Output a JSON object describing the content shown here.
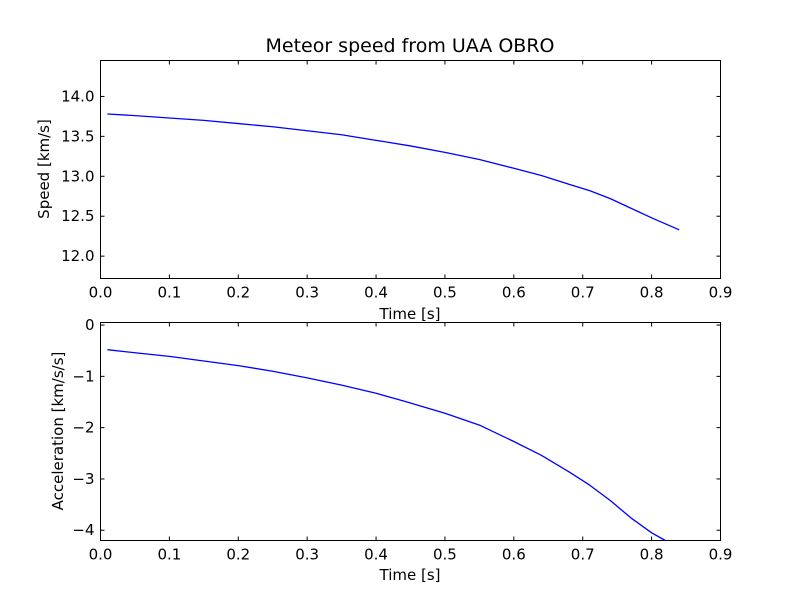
{
  "chart_data": [
    {
      "type": "line",
      "title": "Meteor speed from  UAA OBRO",
      "xlabel": "Time [s]",
      "ylabel": "Speed [km/s]",
      "xlim": [
        0.0,
        0.9
      ],
      "ylim": [
        11.72,
        14.45
      ],
      "xticks": [
        0.0,
        0.1,
        0.2,
        0.3,
        0.4,
        0.5,
        0.6,
        0.7,
        0.8,
        0.9
      ],
      "xtick_labels": [
        "0.0",
        "0.1",
        "0.2",
        "0.3",
        "0.4",
        "0.5",
        "0.6",
        "0.7",
        "0.8",
        "0.9"
      ],
      "yticks": [
        12.0,
        12.5,
        13.0,
        13.5,
        14.0
      ],
      "ytick_labels": [
        "12.0",
        "12.5",
        "13.0",
        "13.5",
        "14.0"
      ],
      "grid": false,
      "series": [
        {
          "color": "#0000ff",
          "x": [
            0.01,
            0.05,
            0.1,
            0.15,
            0.2,
            0.25,
            0.3,
            0.35,
            0.4,
            0.45,
            0.5,
            0.55,
            0.6,
            0.64,
            0.68,
            0.71,
            0.74,
            0.77,
            0.8,
            0.84
          ],
          "y": [
            13.78,
            13.76,
            13.73,
            13.7,
            13.66,
            13.62,
            13.57,
            13.52,
            13.45,
            13.38,
            13.3,
            13.21,
            13.1,
            13.01,
            12.9,
            12.82,
            12.72,
            12.6,
            12.48,
            12.33
          ]
        }
      ]
    },
    {
      "type": "line",
      "title": "",
      "xlabel": "Time [s]",
      "ylabel": "Acceleration [km/s/s]",
      "xlim": [
        0.0,
        0.9
      ],
      "ylim": [
        -4.2,
        0.05
      ],
      "xticks": [
        0.0,
        0.1,
        0.2,
        0.3,
        0.4,
        0.5,
        0.6,
        0.7,
        0.8,
        0.9
      ],
      "xtick_labels": [
        "0.0",
        "0.1",
        "0.2",
        "0.3",
        "0.4",
        "0.5",
        "0.6",
        "0.7",
        "0.8",
        "0.9"
      ],
      "yticks": [
        -4,
        -3,
        -2,
        -1,
        0
      ],
      "ytick_labels": [
        "−4",
        "−3",
        "−2",
        "−1",
        "0"
      ],
      "grid": false,
      "series": [
        {
          "color": "#0000ff",
          "x": [
            0.01,
            0.05,
            0.1,
            0.15,
            0.2,
            0.25,
            0.3,
            0.35,
            0.4,
            0.44,
            0.5,
            0.55,
            0.6,
            0.64,
            0.68,
            0.71,
            0.74,
            0.77,
            0.8,
            0.82
          ],
          "y": [
            -0.48,
            -0.54,
            -0.61,
            -0.7,
            -0.79,
            -0.9,
            -1.03,
            -1.17,
            -1.33,
            -1.48,
            -1.72,
            -1.95,
            -2.27,
            -2.54,
            -2.86,
            -3.12,
            -3.42,
            -3.76,
            -4.05,
            -4.2
          ]
        }
      ]
    }
  ]
}
